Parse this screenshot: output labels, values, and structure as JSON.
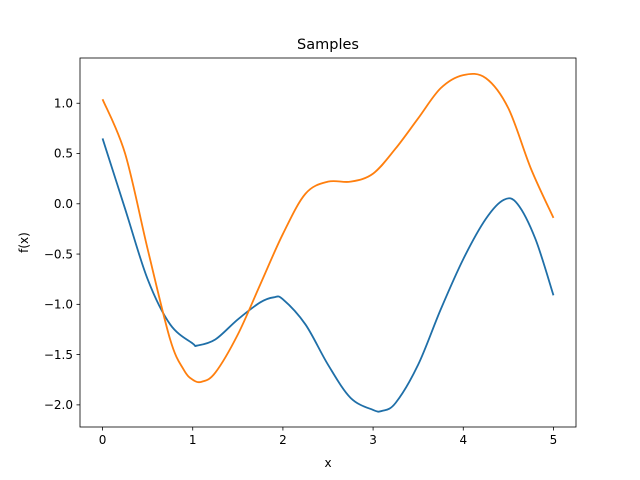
{
  "chart_data": {
    "type": "line",
    "title": "Samples",
    "xlabel": "x",
    "ylabel": "f(x)",
    "xlim": [
      -0.25,
      5.25
    ],
    "ylim": [
      -2.22,
      1.45
    ],
    "xticks": [
      0,
      1,
      2,
      3,
      4,
      5
    ],
    "xtick_labels": [
      "0",
      "1",
      "2",
      "3",
      "4",
      "5"
    ],
    "yticks": [
      -2.0,
      -1.5,
      -1.0,
      -0.5,
      0.0,
      0.5,
      1.0
    ],
    "ytick_labels": [
      "−2.0",
      "−1.5",
      "−1.0",
      "−0.5",
      "0.0",
      "0.5",
      "1.0"
    ],
    "grid": false,
    "series": [
      {
        "color": "#1f6fa8",
        "x": [
          0,
          0.25,
          0.5,
          0.75,
          1.0,
          1.05,
          1.25,
          1.5,
          1.75,
          1.9,
          2.0,
          2.25,
          2.5,
          2.75,
          3.0,
          3.1,
          3.25,
          3.5,
          3.75,
          4.0,
          4.25,
          4.45,
          4.6,
          4.8,
          5.0
        ],
        "y": [
          0.65,
          -0.05,
          -0.75,
          -1.2,
          -1.39,
          -1.41,
          -1.35,
          -1.15,
          -0.98,
          -0.93,
          -0.95,
          -1.2,
          -1.6,
          -1.93,
          -2.05,
          -2.06,
          -1.98,
          -1.6,
          -1.05,
          -0.55,
          -0.15,
          0.04,
          0.0,
          -0.35,
          -0.91
        ]
      },
      {
        "color": "#ff7f0e",
        "x": [
          0,
          0.25,
          0.5,
          0.75,
          0.9,
          1.0,
          1.1,
          1.25,
          1.5,
          1.75,
          2.0,
          2.25,
          2.5,
          2.75,
          3.0,
          3.25,
          3.5,
          3.75,
          4.0,
          4.25,
          4.5,
          4.75,
          5.0
        ],
        "y": [
          1.04,
          0.5,
          -0.45,
          -1.35,
          -1.65,
          -1.75,
          -1.77,
          -1.68,
          -1.3,
          -0.8,
          -0.3,
          0.1,
          0.22,
          0.22,
          0.3,
          0.55,
          0.85,
          1.15,
          1.28,
          1.25,
          0.95,
          0.35,
          -0.14
        ]
      }
    ]
  }
}
